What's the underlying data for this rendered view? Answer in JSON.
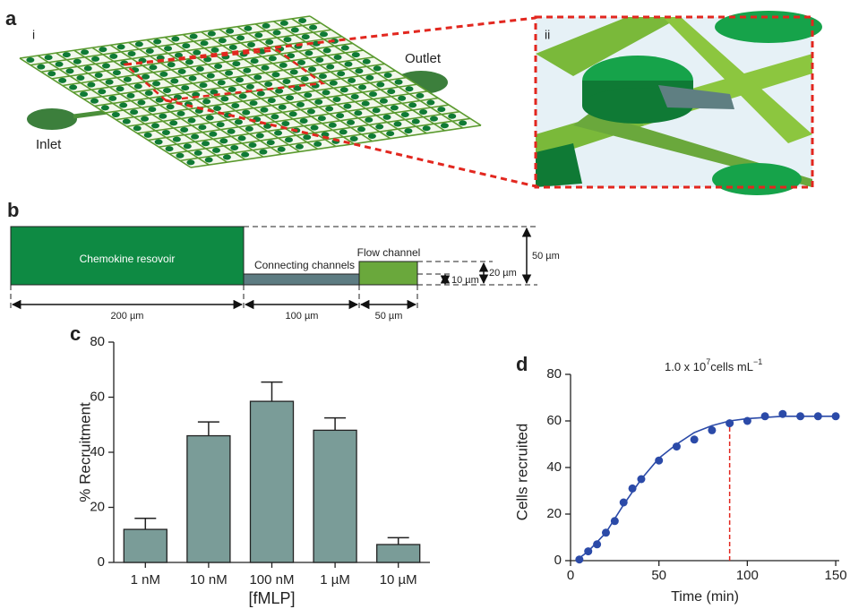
{
  "panels": {
    "a": {
      "label": "a",
      "sub_i": "i",
      "sub_ii": "ii",
      "inlet": "Inlet",
      "outlet": "Outlet"
    },
    "b": {
      "label": "b",
      "reservoir": "Chemokine  resovoir",
      "connecting": "Connecting channels",
      "flow": "Flow channel",
      "dim_200": "200 µm",
      "dim_100": "100 µm",
      "dim_50w": "50 µm",
      "dim_50h": "50 µm",
      "dim_20": "20 µm",
      "dim_10": "10 µm"
    }
  },
  "chart_data": [
    {
      "type": "bar",
      "panel_label": "c",
      "y_label": "% Recruitment",
      "x_label": "[fMLP]",
      "categories": [
        "1 nM",
        "10 nM",
        "100 nM",
        "1 µM",
        "10 µM"
      ],
      "values": [
        12,
        46,
        58.5,
        48,
        6.5
      ],
      "errors": [
        4,
        5,
        7,
        4.5,
        2.5
      ],
      "color": "#7a9c98",
      "ylim": [
        0,
        80
      ],
      "yticks": [
        0,
        20,
        40,
        60,
        80
      ]
    },
    {
      "type": "scatter",
      "panel_label": "d",
      "y_label": "Cells recruited",
      "x_label": "Time (min)",
      "annotation": "1.0 x 10",
      "annotation_exp": "7",
      "annotation_unit": "cells mL",
      "annotation_unit_exp": "−1",
      "x": [
        5,
        10,
        15,
        20,
        25,
        30,
        35,
        40,
        50,
        60,
        70,
        80,
        90,
        100,
        110,
        120,
        130,
        140,
        150
      ],
      "y": [
        0.5,
        4,
        7,
        12,
        17,
        25,
        31,
        35,
        43,
        49,
        52,
        56,
        59,
        60,
        62,
        63,
        62,
        62,
        62
      ],
      "fit_x": [
        3,
        10,
        20,
        30,
        40,
        50,
        60,
        70,
        80,
        90,
        100,
        120,
        150
      ],
      "fit_y": [
        0,
        4,
        12,
        24,
        35,
        44,
        50,
        55,
        58,
        60,
        61,
        62,
        62
      ],
      "marker_x": 90,
      "color": "#2b4aa8",
      "fit_color": "#2b4aa8",
      "marker_color": "#e2271f",
      "xlim": [
        0,
        152
      ],
      "xticks": [
        0,
        50,
        100,
        150
      ],
      "ylim": [
        0,
        80
      ],
      "yticks": [
        0,
        20,
        40,
        60,
        80
      ]
    }
  ]
}
